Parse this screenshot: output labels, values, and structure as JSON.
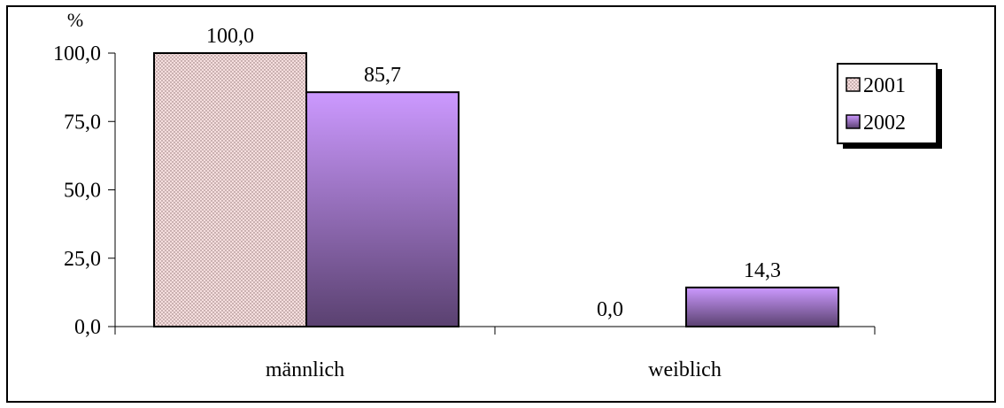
{
  "chart_data": {
    "type": "bar",
    "unit_label": "%",
    "categories": [
      "männlich",
      "weiblich"
    ],
    "series": [
      {
        "name": "2001",
        "values": [
          100.0,
          0.0
        ],
        "value_labels": [
          "100,0",
          "0,0"
        ],
        "color": "#f5dede",
        "pattern": "dotted"
      },
      {
        "name": "2002",
        "values": [
          85.7,
          14.3
        ],
        "value_labels": [
          "85,7",
          "14,3"
        ],
        "color_top": "#cc99ff",
        "color_bottom": "#5a4170"
      }
    ],
    "y_ticks": [
      {
        "value": 0,
        "label": "0,0"
      },
      {
        "value": 25,
        "label": "25,0"
      },
      {
        "value": 50,
        "label": "50,0"
      },
      {
        "value": 75,
        "label": "75,0"
      },
      {
        "value": 100,
        "label": "100,0"
      }
    ],
    "ylim": [
      0,
      100
    ],
    "grid": false,
    "legend_position": "top-right"
  }
}
